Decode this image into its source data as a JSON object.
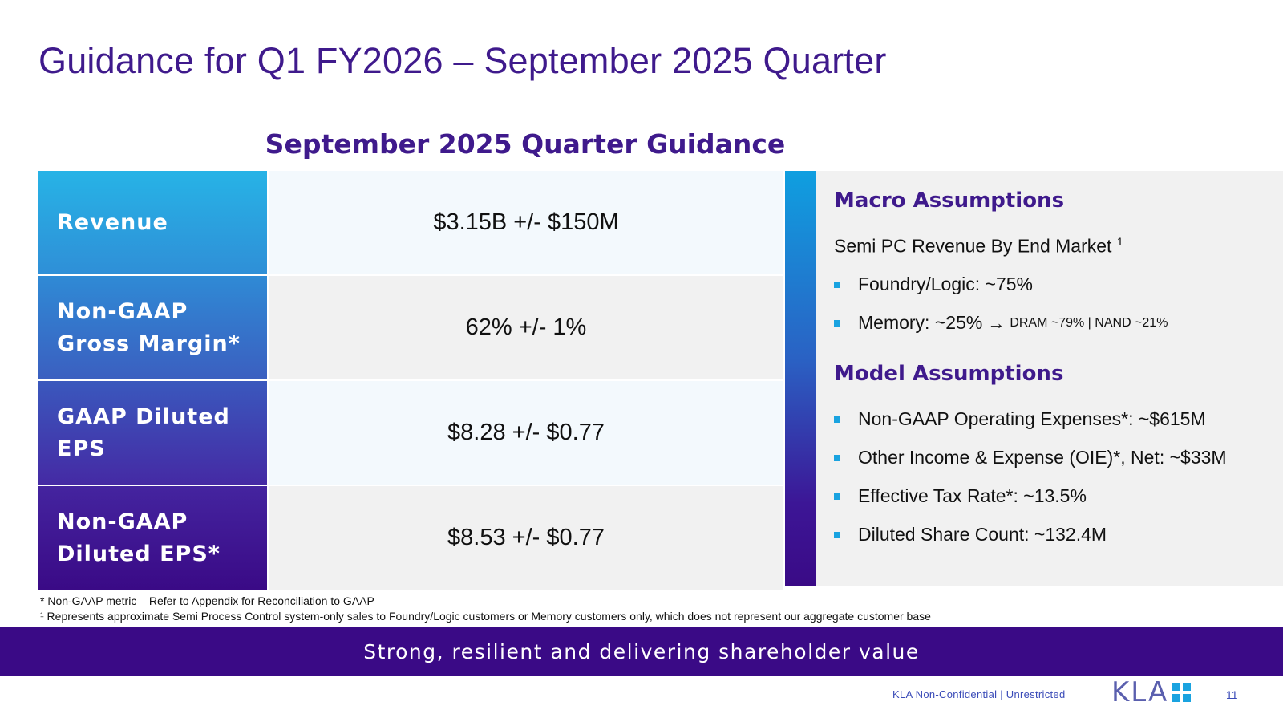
{
  "title": "Guidance for Q1 FY2026 – September 2025 Quarter",
  "table": {
    "heading": "September 2025 Quarter Guidance",
    "rows": [
      {
        "label": "Revenue",
        "value": "$3.15B +/- $150M"
      },
      {
        "label": "Non-GAAP Gross Margin*",
        "value": "62% +/- 1%"
      },
      {
        "label": "GAAP Diluted EPS",
        "value": "$8.28 +/- $0.77"
      },
      {
        "label": "Non-GAAP Diluted EPS*",
        "value": "$8.53 +/- $0.77"
      }
    ]
  },
  "macro": {
    "heading": "Macro Assumptions",
    "subheading": "Semi PC Revenue By End Market",
    "subheading_sup": "1",
    "bullets": [
      {
        "text": "Foundry/Logic: ~75%"
      },
      {
        "text": "Memory: ~25%",
        "arrow": "→",
        "note": "DRAM ~79% | NAND ~21%"
      }
    ]
  },
  "model": {
    "heading": "Model Assumptions",
    "bullets": [
      "Non-GAAP Operating Expenses*: ~$615M",
      "Other Income & Expense (OIE)*, Net: ~$33M",
      "Effective Tax Rate*: ~13.5%",
      "Diluted Share Count: ~132.4M"
    ]
  },
  "footnotes": [
    "* Non-GAAP metric – Refer to Appendix for Reconciliation to GAAP",
    "¹ Represents approximate Semi Process Control system-only sales to Foundry/Logic customers or Memory customers only, which does not represent our aggregate customer base"
  ],
  "banner": "Strong, resilient and delivering shareholder value",
  "footer": {
    "classification": "KLA Non-Confidential | Unrestricted",
    "logo_text": "KLA",
    "page_number": "11"
  },
  "colors": {
    "title": "#3f1a8c",
    "banner": "#3a0a86",
    "bullet": "#1aa3e0",
    "footer_text": "#3a4bb8"
  }
}
